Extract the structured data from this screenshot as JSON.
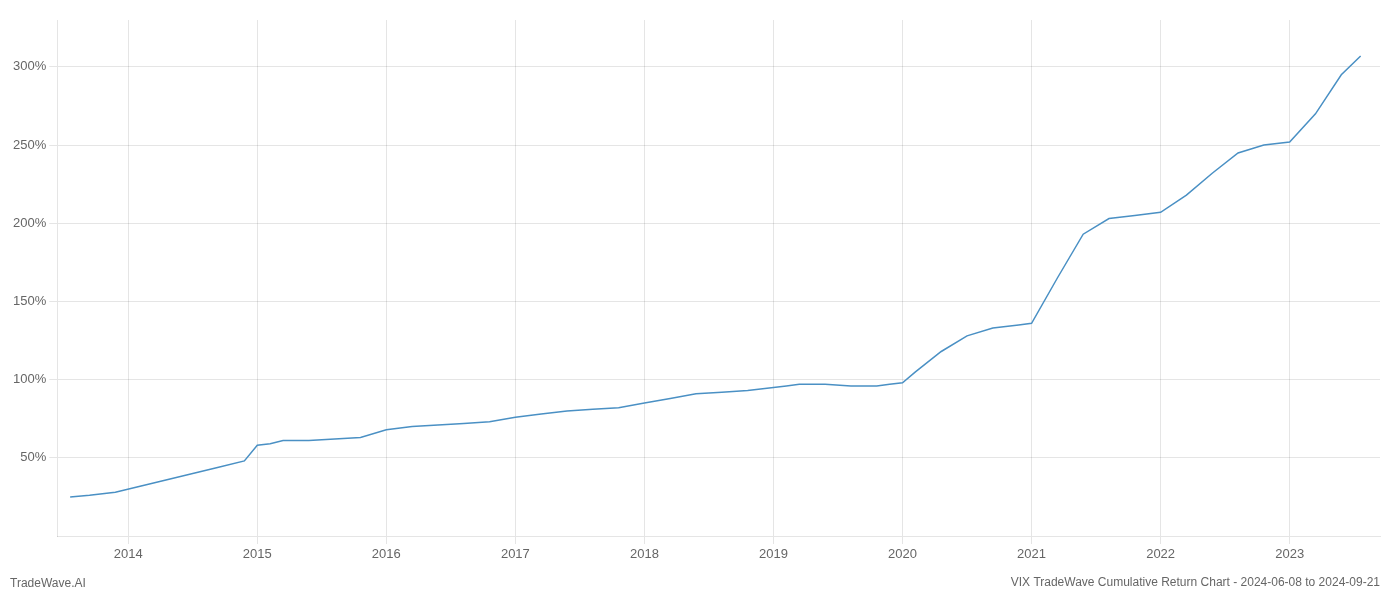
{
  "chart_data": {
    "type": "line",
    "title": "VIX TradeWave Cumulative Return Chart - 2024-06-08 to 2024-09-21",
    "annotations": [
      "TradeWave.AI"
    ],
    "x": [
      2013.55,
      2013.7,
      2013.9,
      2014.1,
      2014.3,
      2014.5,
      2014.7,
      2014.9,
      2015.0,
      2015.1,
      2015.2,
      2015.4,
      2015.6,
      2015.8,
      2016.0,
      2016.2,
      2016.4,
      2016.6,
      2016.8,
      2017.0,
      2017.2,
      2017.4,
      2017.6,
      2017.8,
      2018.0,
      2018.2,
      2018.4,
      2018.6,
      2018.8,
      2019.0,
      2019.1,
      2019.2,
      2019.4,
      2019.6,
      2019.8,
      2019.9,
      2020.0,
      2020.1,
      2020.3,
      2020.5,
      2020.7,
      2020.9,
      2021.0,
      2021.2,
      2021.4,
      2021.6,
      2021.8,
      2022.0,
      2022.2,
      2022.4,
      2022.6,
      2022.8,
      2023.0,
      2023.2,
      2023.4,
      2023.55
    ],
    "values": [
      25,
      26,
      28,
      32,
      36,
      40,
      44,
      48,
      58,
      59,
      61,
      61,
      62,
      63,
      68,
      70,
      71,
      72,
      73,
      76,
      78,
      80,
      81,
      82,
      85,
      88,
      91,
      92,
      93,
      95,
      96,
      97,
      97,
      96,
      96,
      97,
      98,
      105,
      118,
      128,
      133,
      135,
      136,
      165,
      193,
      203,
      205,
      207,
      218,
      232,
      245,
      250,
      252,
      270,
      295,
      307
    ],
    "color": "#4a90c4",
    "xlim": [
      2013.45,
      2023.7
    ],
    "xticks": [
      2014,
      2015,
      2016,
      2017,
      2018,
      2019,
      2020,
      2021,
      2022,
      2023
    ],
    "ylim": [
      0,
      330
    ],
    "yticks": [
      {
        "value": 50,
        "label": "50%"
      },
      {
        "value": 100,
        "label": "100%"
      },
      {
        "value": 150,
        "label": "150%"
      },
      {
        "value": 200,
        "label": "200%"
      },
      {
        "value": 250,
        "label": "250%"
      },
      {
        "value": 300,
        "label": "300%"
      }
    ],
    "grid": true
  }
}
